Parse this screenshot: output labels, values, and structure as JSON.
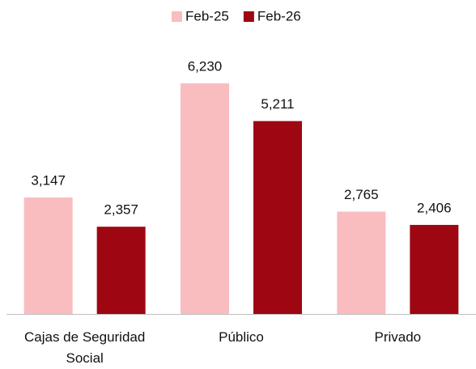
{
  "chart_data": {
    "type": "bar",
    "categories": [
      "Cajas de Seguridad Social",
      "Público",
      "Privado"
    ],
    "series": [
      {
        "name": "Feb-25",
        "color": "#f9bdc0",
        "values": [
          3147,
          6230,
          2765
        ],
        "value_labels": [
          "3,147",
          "6,230",
          "2,765"
        ]
      },
      {
        "name": "Feb-26",
        "color": "#9e0712",
        "values": [
          2357,
          5211,
          2406
        ],
        "value_labels": [
          "2,357",
          "5,211",
          "2,406"
        ]
      }
    ],
    "legend": "top"
  }
}
